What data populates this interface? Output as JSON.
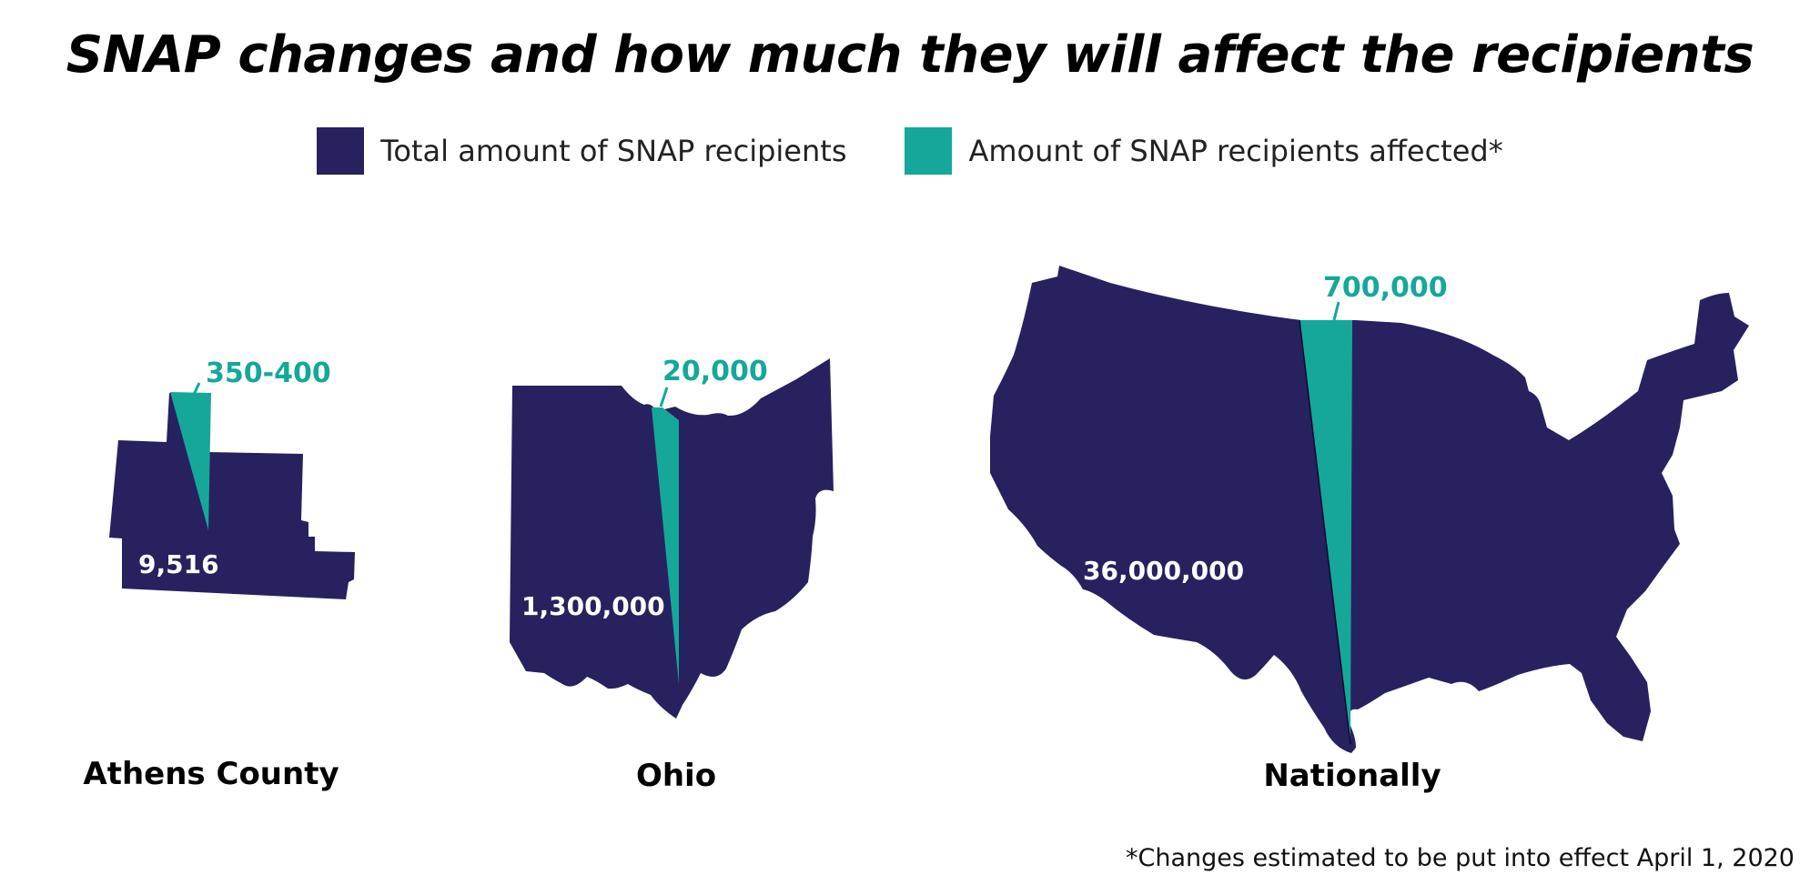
{
  "chart_data": {
    "type": "map-proportion",
    "title": "SNAP changes and how much they will affect the recipients",
    "legend": [
      {
        "label": "Total amount of SNAP recipients",
        "color": "#28215f"
      },
      {
        "label": "Amount of SNAP recipients affected*",
        "color": "#15a89a"
      }
    ],
    "regions": [
      {
        "name": "Athens County",
        "total_label": "9,516",
        "affected_label": "350-400",
        "total": 9516,
        "affected": 375
      },
      {
        "name": "Ohio",
        "total_label": "1,300,000",
        "affected_label": "20,000",
        "total": 1300000,
        "affected": 20000
      },
      {
        "name": "Nationally",
        "total_label": "36,000,000",
        "affected_label": "700,000",
        "total": 36000000,
        "affected": 700000
      }
    ],
    "footnote": "*Changes estimated to be put into effect April 1, 2020"
  }
}
